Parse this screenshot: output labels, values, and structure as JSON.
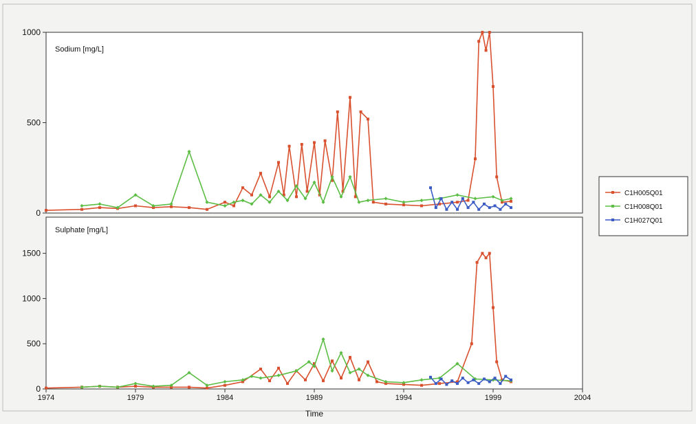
{
  "colors": {
    "C1H005Q01": "#d9502e",
    "C1H008Q01": "#5cbd45",
    "C1H027Q01": "#3a5bc4",
    "axis": "#333333",
    "panel_bg": "#ffffff"
  },
  "legend": {
    "placement": "right",
    "entries": [
      "C1H005Q01",
      "C1H008Q01",
      "C1H027Q01"
    ]
  },
  "chart_data": [
    {
      "type": "line",
      "panel_label": "Sodium [mg/L]",
      "xlabel": "Time",
      "ylim": [
        0,
        1000
      ],
      "yticks": [
        0,
        500,
        1000
      ],
      "xlim": [
        1974,
        2004
      ],
      "xticks": [
        1974,
        1979,
        1984,
        1989,
        1994,
        1999,
        2004
      ],
      "grid": false,
      "series": [
        {
          "name": "C1H005Q01",
          "x": [
            1974,
            1976,
            1977,
            1978,
            1979,
            1980,
            1981,
            1982,
            1983,
            1984,
            1984.5,
            1985,
            1985.5,
            1986,
            1986.5,
            1987,
            1987.3,
            1987.6,
            1988,
            1988.3,
            1988.6,
            1989,
            1989.3,
            1989.6,
            1990,
            1990.3,
            1990.6,
            1991,
            1991.3,
            1991.6,
            1992,
            1992.3,
            1993,
            1994,
            1995,
            1996,
            1997,
            1997.6,
            1998,
            1998.2,
            1998.4,
            1998.6,
            1998.8,
            1999,
            1999.2,
            1999.5,
            2000
          ],
          "y": [
            15,
            20,
            30,
            25,
            40,
            30,
            35,
            30,
            20,
            60,
            40,
            140,
            100,
            220,
            90,
            280,
            100,
            370,
            90,
            380,
            120,
            390,
            100,
            400,
            180,
            560,
            120,
            640,
            90,
            560,
            520,
            60,
            50,
            45,
            40,
            50,
            60,
            70,
            300,
            950,
            1000,
            900,
            1000,
            700,
            200,
            60,
            65
          ]
        },
        {
          "name": "C1H008Q01",
          "x": [
            1976,
            1977,
            1978,
            1979,
            1980,
            1981,
            1982,
            1983,
            1984,
            1984.5,
            1985,
            1985.5,
            1986,
            1986.5,
            1987,
            1987.5,
            1988,
            1988.5,
            1989,
            1989.5,
            1990,
            1990.5,
            1991,
            1991.5,
            1992,
            1993,
            1994,
            1995,
            1996,
            1997,
            1998,
            1999,
            1999.5,
            2000
          ],
          "y": [
            40,
            50,
            30,
            100,
            40,
            50,
            340,
            60,
            40,
            60,
            70,
            50,
            100,
            60,
            120,
            70,
            150,
            80,
            170,
            60,
            200,
            90,
            200,
            60,
            70,
            80,
            60,
            70,
            80,
            100,
            80,
            90,
            70,
            80
          ]
        },
        {
          "name": "C1H027Q01",
          "x": [
            1995.5,
            1995.8,
            1996.1,
            1996.4,
            1996.7,
            1997,
            1997.3,
            1997.6,
            1997.9,
            1998.2,
            1998.5,
            1998.8,
            1999.1,
            1999.4,
            1999.7,
            2000
          ],
          "y": [
            140,
            30,
            80,
            20,
            60,
            20,
            80,
            30,
            60,
            20,
            50,
            30,
            40,
            20,
            50,
            30
          ]
        }
      ]
    },
    {
      "type": "line",
      "panel_label": "Sulphate [mg/L]",
      "xlabel": "Time",
      "ylim": [
        0,
        1900
      ],
      "yticks": [
        0,
        500,
        1000,
        1500
      ],
      "xlim": [
        1974,
        2004
      ],
      "xticks": [
        1974,
        1979,
        1984,
        1989,
        1994,
        1999,
        2004
      ],
      "grid": false,
      "series": [
        {
          "name": "C1H005Q01",
          "x": [
            1974,
            1976,
            1977,
            1978,
            1979,
            1980,
            1981,
            1982,
            1983,
            1984,
            1985,
            1986,
            1986.5,
            1987,
            1987.5,
            1988,
            1988.5,
            1989,
            1989.5,
            1990,
            1990.5,
            1991,
            1991.5,
            1992,
            1992.5,
            1993,
            1994,
            1995,
            1996,
            1997,
            1997.8,
            1998.1,
            1998.4,
            1998.6,
            1998.8,
            1999,
            1999.2,
            1999.5,
            2000
          ],
          "y": [
            10,
            20,
            30,
            20,
            30,
            20,
            20,
            20,
            10,
            40,
            80,
            220,
            90,
            230,
            60,
            200,
            100,
            280,
            90,
            310,
            120,
            350,
            100,
            300,
            80,
            60,
            50,
            40,
            60,
            80,
            500,
            1400,
            1500,
            1450,
            1500,
            900,
            300,
            100,
            80
          ]
        },
        {
          "name": "C1H008Q01",
          "x": [
            1976,
            1977,
            1978,
            1979,
            1980,
            1981,
            1982,
            1983,
            1984,
            1985,
            1985.5,
            1986,
            1987,
            1988,
            1988.7,
            1989,
            1989.5,
            1990,
            1990.5,
            1991,
            1991.5,
            1992,
            1993,
            1994,
            1995,
            1996,
            1997,
            1998,
            1999,
            2000
          ],
          "y": [
            20,
            30,
            20,
            60,
            30,
            40,
            180,
            40,
            80,
            100,
            140,
            120,
            150,
            200,
            300,
            250,
            550,
            200,
            400,
            180,
            220,
            150,
            80,
            70,
            100,
            120,
            280,
            110,
            100,
            90
          ]
        },
        {
          "name": "C1H027Q01",
          "x": [
            1995.5,
            1995.8,
            1996.1,
            1996.4,
            1996.7,
            1997,
            1997.3,
            1997.6,
            1997.9,
            1998.2,
            1998.5,
            1998.8,
            1999.1,
            1999.4,
            1999.7,
            2000
          ],
          "y": [
            130,
            60,
            110,
            50,
            90,
            60,
            120,
            70,
            100,
            60,
            110,
            80,
            120,
            60,
            140,
            100
          ]
        }
      ]
    }
  ]
}
